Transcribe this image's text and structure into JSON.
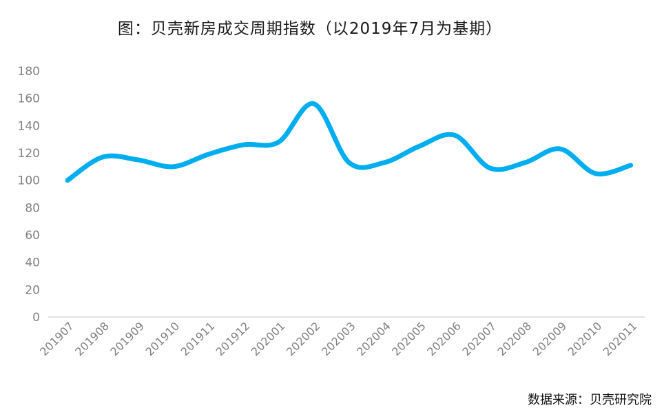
{
  "source_text": "数据来源：贝壳研究院",
  "chart_data": {
    "type": "line",
    "title": "图：贝壳新房成交周期指数（以2019年7月为基期）",
    "xlabel": "",
    "ylabel": "",
    "categories": [
      "201907",
      "201908",
      "201909",
      "201910",
      "201911",
      "201912",
      "202001",
      "202002",
      "202003",
      "202004",
      "202005",
      "202006",
      "202007",
      "202008",
      "202009",
      "202010",
      "202011"
    ],
    "values": [
      100,
      117,
      115,
      110,
      119,
      126,
      128,
      156,
      113,
      113,
      125,
      133,
      109,
      113,
      123,
      105,
      111
    ],
    "ylim": [
      0,
      180
    ],
    "yticks": [
      0,
      20,
      40,
      60,
      80,
      100,
      120,
      140,
      160,
      180
    ],
    "grid": false,
    "line_color": "#00AEEF"
  }
}
